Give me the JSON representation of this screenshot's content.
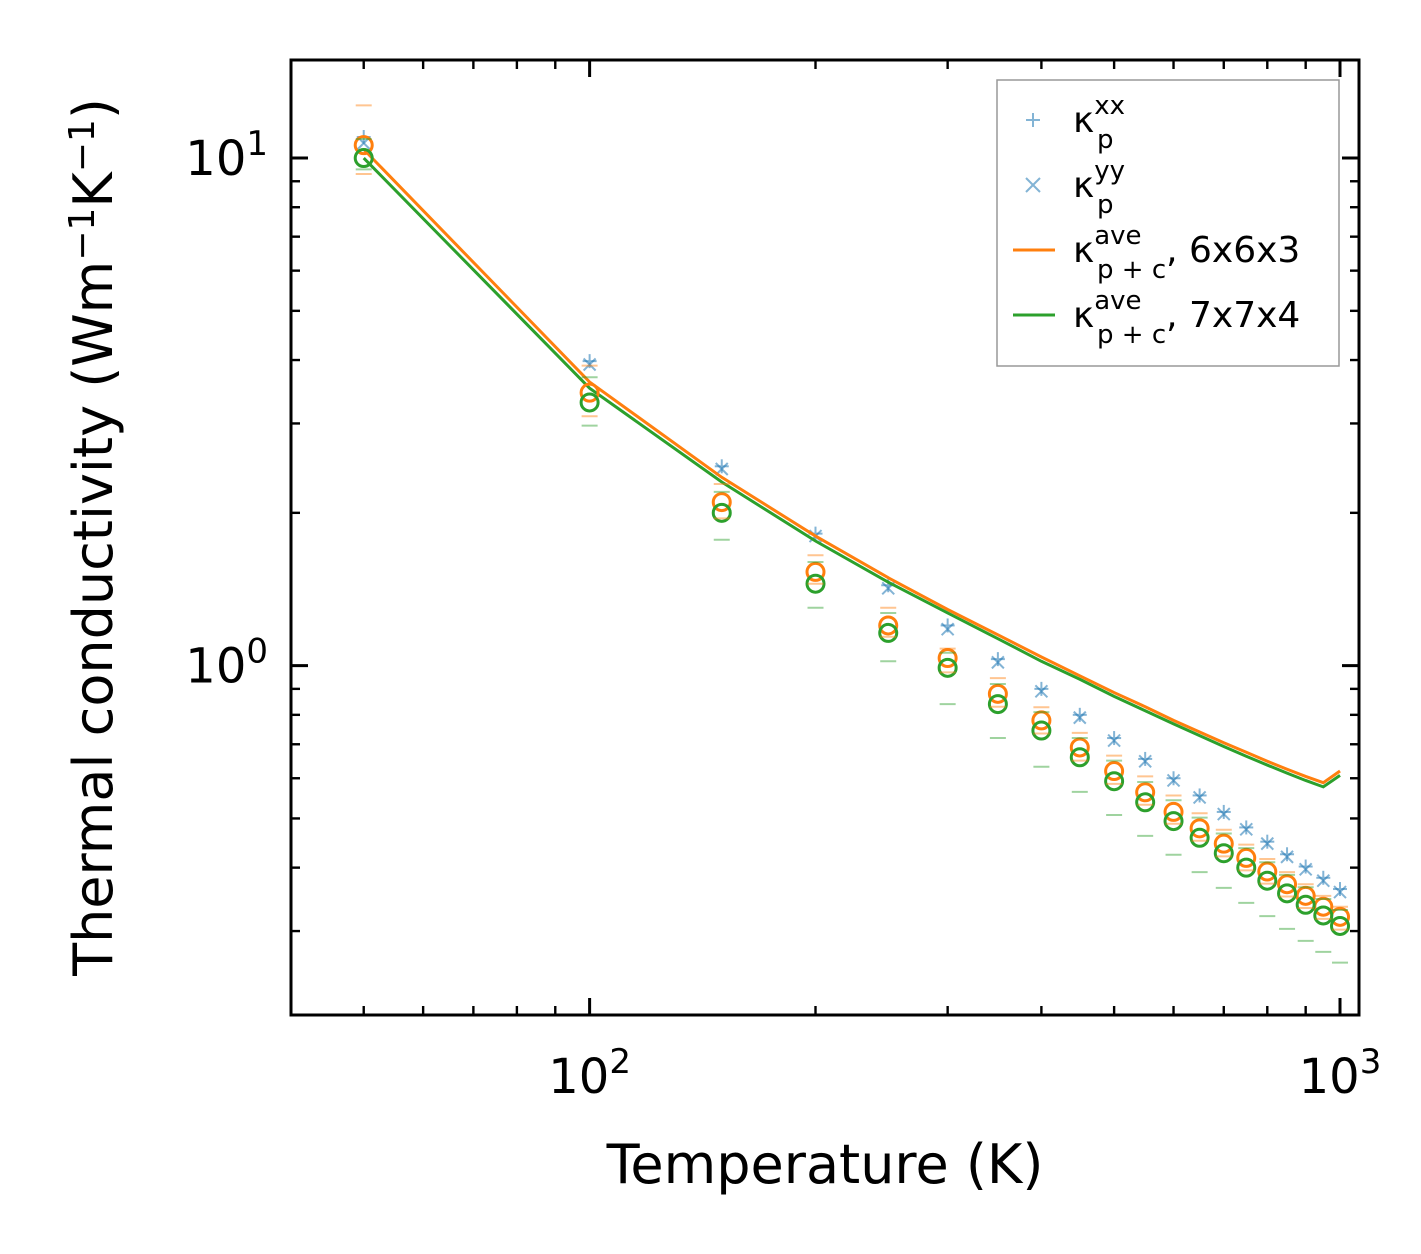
{
  "chart_data": {
    "type": "line",
    "xlabel": "Temperature (K)",
    "ylabel": "Thermal conductivity (Wm",
    "ylabel_unit_parts": [
      "Thermal conductivity (Wm",
      "−1",
      "K",
      "−1",
      ")"
    ],
    "xscale": "log",
    "yscale": "log",
    "xlim": [
      40,
      1060
    ],
    "ylim": [
      0.205,
      15.6
    ],
    "x_ticks": [
      {
        "base": "10",
        "exp": "2",
        "value": 100
      },
      {
        "base": "10",
        "exp": "3",
        "value": 1000
      }
    ],
    "y_ticks": [
      {
        "base": "10",
        "exp": "0",
        "value": 1
      },
      {
        "base": "10",
        "exp": "1",
        "value": 10
      }
    ],
    "temperatures": [
      50,
      100,
      150,
      200,
      250,
      300,
      350,
      400,
      450,
      500,
      550,
      600,
      650,
      700,
      750,
      800,
      850,
      900,
      950,
      1000
    ],
    "series": [
      {
        "name": "kappa_p_xx",
        "label_main": "κ",
        "label_sub": "p",
        "label_sup": "xx",
        "kind": "scatter",
        "marker": "plus",
        "color": "#1f77b4",
        "values": [
          11.0,
          3.98,
          2.47,
          1.82,
          1.44,
          1.2,
          1.03,
          0.9,
          0.8,
          0.72,
          0.655,
          0.6,
          0.555,
          0.515,
          0.48,
          0.45,
          0.425,
          0.402,
          0.382,
          0.363
        ]
      },
      {
        "name": "kappa_p_yy",
        "label_main": "κ",
        "label_sub": "p",
        "label_sup": "yy",
        "kind": "scatter",
        "marker": "x",
        "color": "#1f77b4",
        "values": [
          10.7,
          3.92,
          2.44,
          1.8,
          1.42,
          1.18,
          1.015,
          0.89,
          0.79,
          0.712,
          0.648,
          0.594,
          0.55,
          0.51,
          0.476,
          0.446,
          0.42,
          0.397,
          0.377,
          0.358
        ]
      },
      {
        "name": "kappa_pc_ave_663",
        "label_main": "κ",
        "label_sub": "p + c",
        "label_sup": "ave",
        "label_suffix": ", 6x6x3",
        "kind": "line",
        "color": "#ff7f0e",
        "values": [
          10.4,
          3.62,
          2.35,
          1.8,
          1.49,
          1.29,
          1.15,
          1.04,
          0.955,
          0.885,
          0.83,
          0.78,
          0.74,
          0.705,
          0.675,
          0.648,
          0.625,
          0.605,
          0.588,
          0.62
        ]
      },
      {
        "name": "kappa_pc_ave_774",
        "label_main": "κ",
        "label_sub": "p + c",
        "label_sup": "ave",
        "label_suffix": ", 7x7x4",
        "kind": "line",
        "color": "#2ca02c",
        "values": [
          10.0,
          3.52,
          2.3,
          1.76,
          1.46,
          1.27,
          1.13,
          1.02,
          0.94,
          0.87,
          0.815,
          0.768,
          0.728,
          0.693,
          0.663,
          0.637,
          0.614,
          0.594,
          0.577,
          0.608
        ]
      },
      {
        "name": "circles_6x6x3",
        "kind": "scatter",
        "marker": "circle",
        "color": "#ff7f0e",
        "values": [
          10.6,
          3.45,
          2.1,
          1.53,
          1.2,
          1.035,
          0.88,
          0.78,
          0.69,
          0.62,
          0.563,
          0.515,
          0.478,
          0.446,
          0.418,
          0.393,
          0.371,
          0.352,
          0.335,
          0.32
        ]
      },
      {
        "name": "circles_7x7x4",
        "kind": "scatter",
        "marker": "circle",
        "color": "#2ca02c",
        "values": [
          10.0,
          3.3,
          2.0,
          1.45,
          1.16,
          0.99,
          0.84,
          0.745,
          0.66,
          0.592,
          0.538,
          0.494,
          0.458,
          0.427,
          0.4,
          0.377,
          0.356,
          0.338,
          0.322,
          0.307
        ]
      },
      {
        "name": "dash_orange_upper",
        "kind": "scatter",
        "marker": "dash",
        "color": "#ff7f0e",
        "values": [
          12.7,
          3.9,
          2.28,
          1.65,
          1.3,
          1.08,
          0.945,
          0.828,
          0.737,
          0.665,
          0.605,
          0.555,
          0.512,
          0.475,
          0.444,
          0.416,
          0.392,
          0.371,
          0.352,
          0.335
        ]
      },
      {
        "name": "dash_orange_lower",
        "kind": "scatter",
        "marker": "dash",
        "color": "#ff7f0e",
        "values": [
          9.3,
          3.1,
          1.95,
          1.45,
          1.14,
          0.97,
          0.83,
          0.735,
          0.65,
          0.585,
          0.532,
          0.488,
          0.452,
          0.421,
          0.395,
          0.372,
          0.351,
          0.333,
          0.317,
          0.302
        ]
      },
      {
        "name": "dash_green_upper",
        "kind": "scatter",
        "marker": "dash",
        "color": "#2ca02c",
        "values": [
          10.9,
          3.7,
          2.2,
          1.6,
          1.27,
          1.06,
          0.92,
          0.81,
          0.72,
          0.65,
          0.59,
          0.543,
          0.502,
          0.467,
          0.437,
          0.41,
          0.387,
          0.366,
          0.347,
          0.33
        ]
      },
      {
        "name": "dash_green_lower",
        "kind": "scatter",
        "marker": "dash",
        "color": "#2ca02c",
        "values": [
          9.5,
          2.97,
          1.77,
          1.3,
          1.02,
          0.84,
          0.72,
          0.632,
          0.564,
          0.508,
          0.462,
          0.424,
          0.392,
          0.365,
          0.341,
          0.321,
          0.303,
          0.287,
          0.273,
          0.26
        ]
      }
    ],
    "legend": {
      "position": "top-right",
      "entries": [
        {
          "main": "κ",
          "sub": "p",
          "sup": "xx",
          "suffix": ""
        },
        {
          "main": "κ",
          "sub": "p",
          "sup": "yy",
          "suffix": ""
        },
        {
          "main": "κ",
          "sub": "p + c",
          "sup": "ave",
          "suffix": ", 6x6x3"
        },
        {
          "main": "κ",
          "sub": "p + c",
          "sup": "ave",
          "suffix": ", 7x7x4"
        }
      ]
    }
  }
}
